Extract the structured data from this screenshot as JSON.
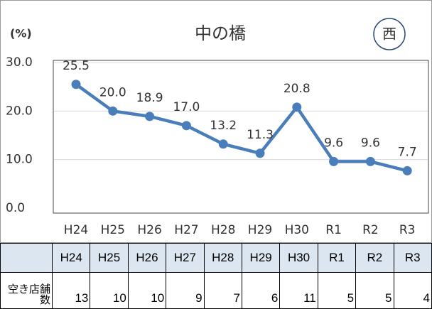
{
  "chart_data": {
    "type": "line",
    "title": "中の橋",
    "y_axis_label": "(%)",
    "badge": "西",
    "categories": [
      "H24",
      "H25",
      "H26",
      "H27",
      "H28",
      "H29",
      "H30",
      "R1",
      "R2",
      "R3"
    ],
    "values": [
      25.5,
      20.0,
      18.9,
      17.0,
      13.2,
      11.3,
      20.8,
      9.6,
      9.6,
      7.7
    ],
    "value_labels": [
      "25.5",
      "20.0",
      "18.9",
      "17.0",
      "13.2",
      "11.3",
      "20.8",
      "9.6",
      "9.6",
      "7.7"
    ],
    "color": "#4a7ebb",
    "ylim": [
      0,
      30
    ],
    "yticks": [
      {
        "value": 0,
        "label": "0.0"
      },
      {
        "value": 10,
        "label": "10.0"
      },
      {
        "value": 20,
        "label": "20.0"
      },
      {
        "value": 30,
        "label": "30.0"
      }
    ],
    "grid": true
  },
  "table": {
    "row_label": "空き店舗数",
    "values": [
      13,
      10,
      10,
      9,
      7,
      6,
      11,
      5,
      5,
      4
    ]
  }
}
